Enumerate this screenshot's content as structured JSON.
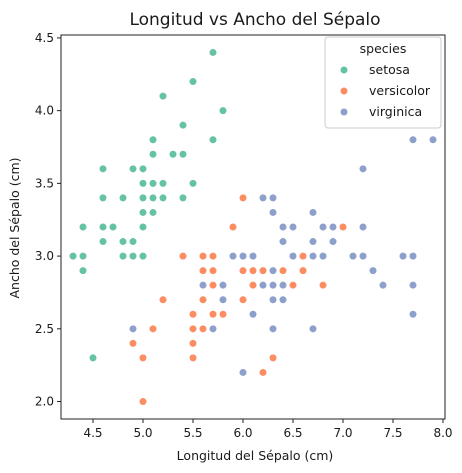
{
  "chart_data": {
    "type": "scatter",
    "title": "Longitud vs Ancho del Sépalo",
    "xlabel": "Longitud del Sépalo (cm)",
    "ylabel": "Ancho del Sépalo (cm)",
    "xlim": [
      4.18,
      8.02
    ],
    "ylim": [
      1.88,
      4.52
    ],
    "xticks": [
      "4.5",
      "5.0",
      "5.5",
      "6.0",
      "6.5",
      "7.0",
      "7.5",
      "8.0"
    ],
    "yticks": [
      "2.0",
      "2.5",
      "3.0",
      "3.5",
      "4.0",
      "4.5"
    ],
    "grid": false,
    "legend": {
      "title": "species",
      "placement": "top-right"
    },
    "series": [
      {
        "name": "setosa",
        "color": "#66c2a5",
        "points": [
          [
            5.1,
            3.5
          ],
          [
            4.9,
            3.0
          ],
          [
            4.7,
            3.2
          ],
          [
            4.6,
            3.1
          ],
          [
            5.0,
            3.6
          ],
          [
            5.4,
            3.9
          ],
          [
            4.6,
            3.4
          ],
          [
            5.0,
            3.4
          ],
          [
            4.4,
            2.9
          ],
          [
            4.9,
            3.1
          ],
          [
            5.4,
            3.7
          ],
          [
            4.8,
            3.4
          ],
          [
            4.8,
            3.0
          ],
          [
            4.3,
            3.0
          ],
          [
            5.8,
            4.0
          ],
          [
            5.7,
            4.4
          ],
          [
            5.4,
            3.9
          ],
          [
            5.1,
            3.5
          ],
          [
            5.7,
            3.8
          ],
          [
            5.1,
            3.8
          ],
          [
            5.4,
            3.4
          ],
          [
            5.1,
            3.7
          ],
          [
            4.6,
            3.6
          ],
          [
            5.1,
            3.3
          ],
          [
            4.8,
            3.4
          ],
          [
            5.0,
            3.0
          ],
          [
            5.0,
            3.4
          ],
          [
            5.2,
            3.5
          ],
          [
            5.2,
            3.4
          ],
          [
            4.7,
            3.2
          ],
          [
            4.8,
            3.1
          ],
          [
            5.4,
            3.4
          ],
          [
            5.2,
            4.1
          ],
          [
            5.5,
            4.2
          ],
          [
            4.9,
            3.1
          ],
          [
            5.0,
            3.2
          ],
          [
            5.5,
            3.5
          ],
          [
            4.9,
            3.6
          ],
          [
            4.4,
            3.0
          ],
          [
            5.1,
            3.4
          ],
          [
            5.0,
            3.5
          ],
          [
            4.5,
            2.3
          ],
          [
            4.4,
            3.2
          ],
          [
            5.0,
            3.5
          ],
          [
            5.1,
            3.8
          ],
          [
            4.8,
            3.0
          ],
          [
            5.1,
            3.8
          ],
          [
            4.6,
            3.2
          ],
          [
            5.3,
            3.7
          ],
          [
            5.0,
            3.3
          ]
        ]
      },
      {
        "name": "versicolor",
        "color": "#fc8d62",
        "points": [
          [
            7.0,
            3.2
          ],
          [
            6.4,
            3.2
          ],
          [
            6.9,
            3.1
          ],
          [
            5.5,
            2.3
          ],
          [
            6.5,
            2.8
          ],
          [
            5.7,
            2.8
          ],
          [
            6.3,
            3.3
          ],
          [
            4.9,
            2.4
          ],
          [
            6.6,
            2.9
          ],
          [
            5.2,
            2.7
          ],
          [
            5.0,
            2.0
          ],
          [
            5.9,
            3.0
          ],
          [
            6.0,
            2.2
          ],
          [
            6.1,
            2.9
          ],
          [
            5.6,
            2.9
          ],
          [
            6.7,
            3.1
          ],
          [
            5.6,
            3.0
          ],
          [
            5.8,
            2.7
          ],
          [
            6.2,
            2.2
          ],
          [
            5.6,
            2.5
          ],
          [
            5.9,
            3.2
          ],
          [
            6.1,
            2.8
          ],
          [
            6.3,
            2.5
          ],
          [
            6.1,
            2.8
          ],
          [
            6.4,
            2.9
          ],
          [
            6.6,
            3.0
          ],
          [
            6.8,
            2.8
          ],
          [
            6.7,
            3.0
          ],
          [
            6.0,
            2.9
          ],
          [
            5.7,
            2.6
          ],
          [
            5.5,
            2.4
          ],
          [
            5.5,
            2.4
          ],
          [
            5.8,
            2.7
          ],
          [
            6.0,
            2.7
          ],
          [
            5.4,
            3.0
          ],
          [
            6.0,
            3.4
          ],
          [
            6.7,
            3.1
          ],
          [
            6.3,
            2.3
          ],
          [
            5.6,
            3.0
          ],
          [
            5.5,
            2.5
          ],
          [
            5.5,
            2.6
          ],
          [
            6.1,
            3.0
          ],
          [
            5.8,
            2.6
          ],
          [
            5.0,
            2.3
          ],
          [
            5.6,
            2.7
          ],
          [
            5.7,
            3.0
          ],
          [
            5.7,
            2.9
          ],
          [
            6.2,
            2.9
          ],
          [
            5.1,
            2.5
          ],
          [
            5.7,
            2.8
          ]
        ]
      },
      {
        "name": "virginica",
        "color": "#8da0cb",
        "points": [
          [
            6.3,
            3.3
          ],
          [
            5.8,
            2.7
          ],
          [
            7.1,
            3.0
          ],
          [
            6.3,
            2.9
          ],
          [
            6.5,
            3.0
          ],
          [
            7.6,
            3.0
          ],
          [
            4.9,
            2.5
          ],
          [
            7.3,
            2.9
          ],
          [
            6.7,
            2.5
          ],
          [
            7.2,
            3.6
          ],
          [
            6.5,
            3.2
          ],
          [
            6.4,
            2.7
          ],
          [
            6.8,
            3.0
          ],
          [
            5.7,
            2.5
          ],
          [
            5.8,
            2.8
          ],
          [
            6.4,
            3.2
          ],
          [
            6.5,
            3.0
          ],
          [
            7.7,
            3.8
          ],
          [
            7.7,
            2.6
          ],
          [
            6.0,
            2.2
          ],
          [
            6.9,
            3.2
          ],
          [
            5.6,
            2.8
          ],
          [
            7.7,
            2.8
          ],
          [
            6.3,
            2.7
          ],
          [
            6.7,
            3.3
          ],
          [
            7.2,
            3.2
          ],
          [
            6.2,
            2.8
          ],
          [
            6.1,
            3.0
          ],
          [
            6.4,
            2.8
          ],
          [
            7.2,
            3.0
          ],
          [
            7.4,
            2.8
          ],
          [
            7.9,
            3.8
          ],
          [
            6.4,
            2.8
          ],
          [
            6.3,
            2.8
          ],
          [
            6.1,
            2.6
          ],
          [
            7.7,
            3.0
          ],
          [
            6.3,
            3.4
          ],
          [
            6.4,
            3.1
          ],
          [
            6.0,
            3.0
          ],
          [
            6.9,
            3.1
          ],
          [
            6.7,
            3.1
          ],
          [
            6.9,
            3.1
          ],
          [
            5.8,
            2.7
          ],
          [
            6.8,
            3.2
          ],
          [
            6.7,
            3.3
          ],
          [
            6.7,
            3.0
          ],
          [
            6.3,
            2.5
          ],
          [
            6.5,
            3.0
          ],
          [
            6.2,
            3.4
          ],
          [
            5.9,
            3.0
          ]
        ]
      }
    ]
  }
}
